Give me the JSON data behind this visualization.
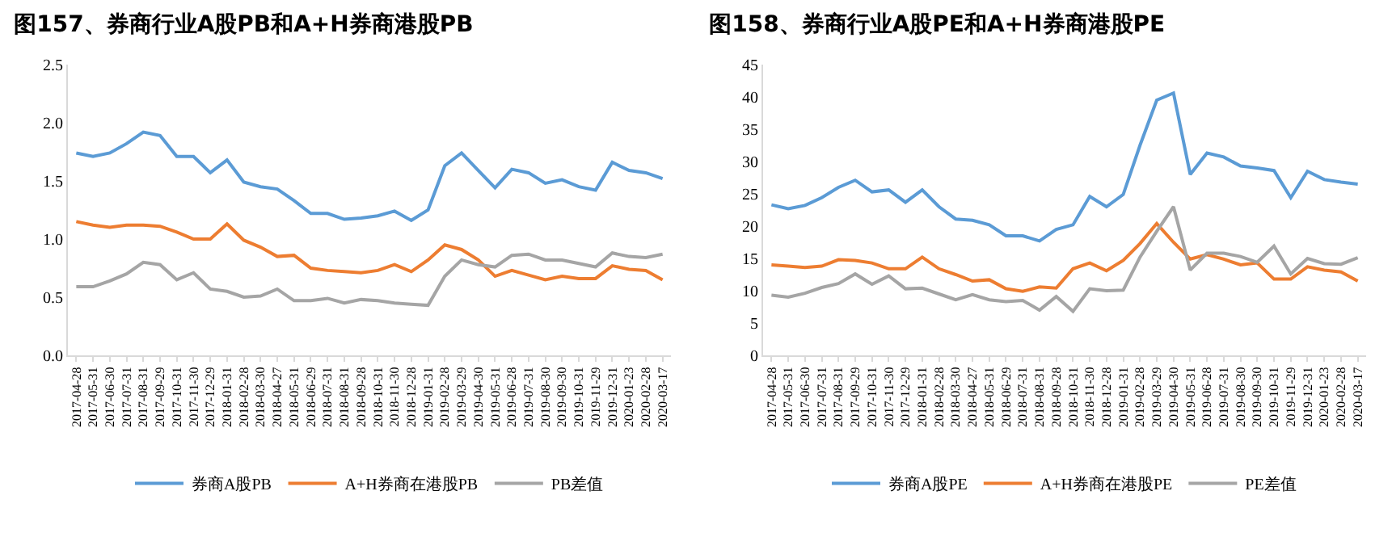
{
  "chart_data": [
    {
      "type": "line",
      "title": "图157、券商行业A股PB和A+H券商港股PB",
      "categories": [
        "2017-04-28",
        "2017-05-31",
        "2017-06-30",
        "2017-07-31",
        "2017-08-31",
        "2017-09-29",
        "2017-10-31",
        "2017-11-30",
        "2017-12-29",
        "2018-01-31",
        "2018-02-28",
        "2018-03-30",
        "2018-04-27",
        "2018-05-31",
        "2018-06-29",
        "2018-07-31",
        "2018-08-31",
        "2018-09-28",
        "2018-10-31",
        "2018-11-30",
        "2018-12-28",
        "2019-01-31",
        "2019-02-28",
        "2019-03-29",
        "2019-04-30",
        "2019-05-31",
        "2019-06-28",
        "2019-07-31",
        "2019-08-30",
        "2019-09-30",
        "2019-10-31",
        "2019-11-29",
        "2019-12-31",
        "2020-01-23",
        "2020-02-28",
        "2020-03-17"
      ],
      "series": [
        {
          "name": "券商A股PB",
          "color": "#5b9bd5",
          "values": [
            1.74,
            1.71,
            1.74,
            1.82,
            1.92,
            1.89,
            1.71,
            1.71,
            1.57,
            1.68,
            1.49,
            1.45,
            1.43,
            1.33,
            1.22,
            1.22,
            1.17,
            1.18,
            1.2,
            1.24,
            1.16,
            1.25,
            1.63,
            1.74,
            1.59,
            1.44,
            1.6,
            1.57,
            1.48,
            1.51,
            1.45,
            1.42,
            1.66,
            1.59,
            1.57,
            1.52
          ]
        },
        {
          "name": "A+H券商在港股PB",
          "color": "#ed7d31",
          "values": [
            1.15,
            1.12,
            1.1,
            1.12,
            1.12,
            1.11,
            1.06,
            1.0,
            1.0,
            1.13,
            0.99,
            0.93,
            0.85,
            0.86,
            0.75,
            0.73,
            0.72,
            0.71,
            0.73,
            0.78,
            0.72,
            0.82,
            0.95,
            0.91,
            0.82,
            0.68,
            0.73,
            0.69,
            0.65,
            0.68,
            0.66,
            0.66,
            0.77,
            0.74,
            0.73,
            0.65
          ]
        },
        {
          "name": "PB差值",
          "color": "#a5a5a5",
          "values": [
            0.59,
            0.59,
            0.64,
            0.7,
            0.8,
            0.78,
            0.65,
            0.71,
            0.57,
            0.55,
            0.5,
            0.51,
            0.57,
            0.47,
            0.47,
            0.49,
            0.45,
            0.48,
            0.47,
            0.45,
            0.44,
            0.43,
            0.68,
            0.82,
            0.78,
            0.76,
            0.86,
            0.87,
            0.82,
            0.82,
            0.79,
            0.76,
            0.88,
            0.85,
            0.84,
            0.87
          ]
        }
      ],
      "ylim": [
        0,
        2.5
      ],
      "yticks": [
        {
          "value": 0,
          "label": "0.0"
        },
        {
          "value": 0.5,
          "label": "0.5"
        },
        {
          "value": 1,
          "label": "1.0"
        },
        {
          "value": 1.5,
          "label": "1.5"
        },
        {
          "value": 2,
          "label": "2.0"
        },
        {
          "value": 2.5,
          "label": "2.5"
        }
      ],
      "grid": false,
      "legend": "bottom",
      "marker": "none",
      "line_style": "solid"
    },
    {
      "type": "line",
      "title": "图158、券商行业A股PE和A+H券商港股PE",
      "categories": [
        "2017-04-28",
        "2017-05-31",
        "2017-06-30",
        "2017-07-31",
        "2017-08-31",
        "2017-09-29",
        "2017-10-31",
        "2017-11-30",
        "2017-12-29",
        "2018-01-31",
        "2018-02-28",
        "2018-03-30",
        "2018-04-27",
        "2018-05-31",
        "2018-06-29",
        "2018-07-31",
        "2018-08-31",
        "2018-09-28",
        "2018-10-31",
        "2018-11-30",
        "2018-12-28",
        "2019-01-31",
        "2019-02-28",
        "2019-03-29",
        "2019-04-30",
        "2019-05-31",
        "2019-06-28",
        "2019-07-31",
        "2019-08-30",
        "2019-09-30",
        "2019-10-31",
        "2019-11-29",
        "2019-12-31",
        "2020-01-23",
        "2020-02-28",
        "2020-03-17"
      ],
      "series": [
        {
          "name": "券商A股PE",
          "color": "#5b9bd5",
          "values": [
            23.3,
            22.7,
            23.2,
            24.4,
            26.0,
            27.1,
            25.3,
            25.6,
            23.7,
            25.6,
            23.0,
            21.1,
            20.9,
            20.2,
            18.5,
            18.5,
            17.7,
            19.5,
            20.2,
            24.6,
            23.0,
            24.9,
            32.5,
            39.5,
            40.6,
            28.0,
            31.3,
            30.7,
            29.3,
            29.0,
            28.6,
            24.4,
            28.5,
            27.2,
            26.8,
            26.5
          ]
        },
        {
          "name": "A+H券商在港股PE",
          "color": "#ed7d31",
          "values": [
            14.0,
            13.8,
            13.6,
            13.8,
            14.8,
            14.7,
            14.3,
            13.4,
            13.4,
            15.2,
            13.4,
            12.5,
            11.5,
            11.7,
            10.3,
            9.9,
            10.6,
            10.4,
            13.4,
            14.3,
            13.1,
            14.7,
            17.3,
            20.4,
            17.5,
            14.9,
            15.6,
            14.9,
            14.0,
            14.3,
            11.8,
            11.8,
            13.7,
            13.2,
            12.9,
            11.5
          ]
        },
        {
          "name": "PE差值",
          "color": "#a5a5a5",
          "values": [
            9.3,
            9.0,
            9.6,
            10.5,
            11.1,
            12.6,
            11.0,
            12.3,
            10.3,
            10.4,
            9.5,
            8.6,
            9.4,
            8.6,
            8.3,
            8.5,
            7.0,
            9.1,
            6.8,
            10.3,
            10.0,
            10.1,
            15.2,
            19.2,
            23.0,
            13.2,
            15.8,
            15.8,
            15.3,
            14.4,
            16.9,
            12.6,
            15.0,
            14.2,
            14.1,
            15.1
          ]
        }
      ],
      "ylim": [
        0,
        45
      ],
      "yticks": [
        0,
        5,
        10,
        15,
        20,
        25,
        30,
        35,
        40,
        45
      ],
      "grid": false,
      "legend": "bottom",
      "marker": "none",
      "line_style": "solid"
    }
  ]
}
